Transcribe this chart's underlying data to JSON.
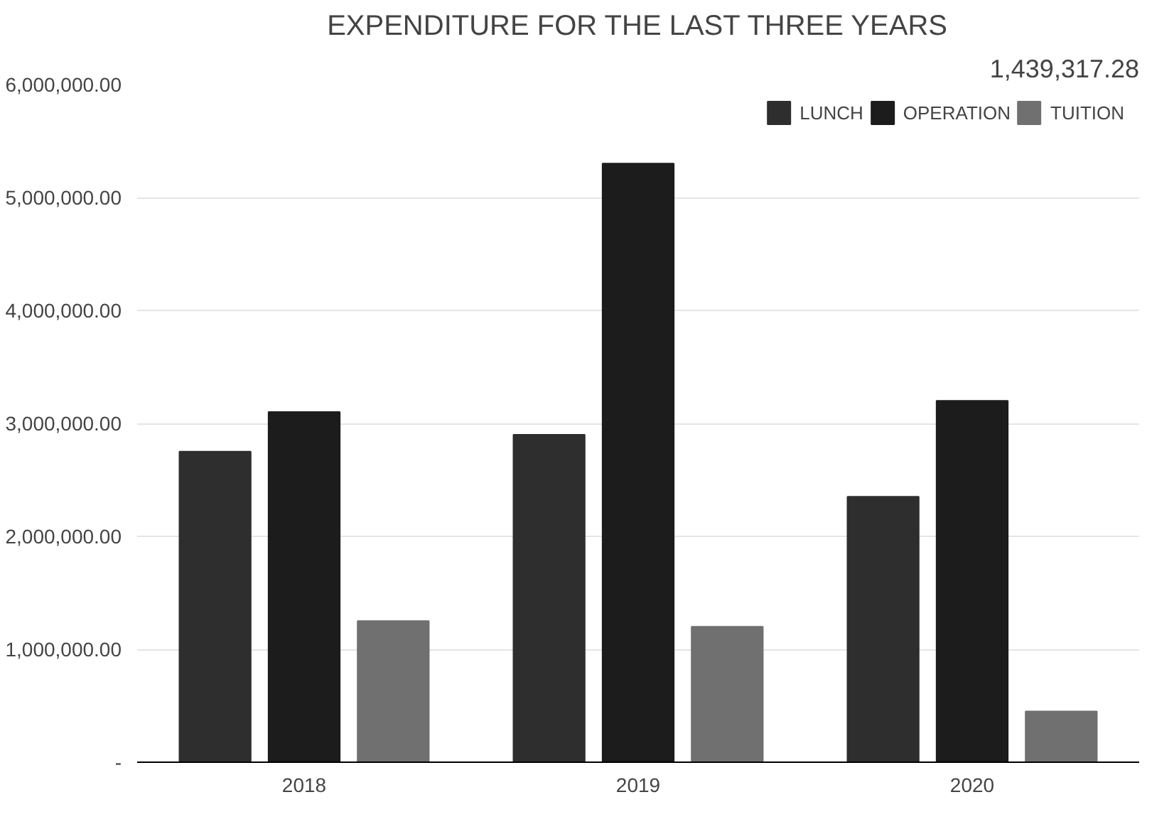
{
  "chart_data": {
    "type": "bar",
    "title": "EXPENDITURE FOR THE LAST THREE YEARS",
    "categories": [
      "2018",
      "2019",
      "2020"
    ],
    "series": [
      {
        "name": "LUNCH",
        "color": "#2e2e2e",
        "values": [
          2750000,
          2900000,
          2350000
        ]
      },
      {
        "name": "OPERATION",
        "color": "#1c1c1c",
        "values": [
          3100000,
          5300000,
          3200000
        ]
      },
      {
        "name": "TUITION",
        "color": "#707070",
        "values": [
          1250000,
          1200000,
          450000
        ]
      }
    ],
    "ylim": [
      0,
      6000000
    ],
    "yticks": [
      {
        "value": 0,
        "label": "-"
      },
      {
        "value": 1000000,
        "label": "1,000,000.00"
      },
      {
        "value": 2000000,
        "label": "2,000,000.00"
      },
      {
        "value": 3000000,
        "label": "3,000,000.00"
      },
      {
        "value": 4000000,
        "label": "4,000,000.00"
      },
      {
        "value": 5000000,
        "label": "5,000,000.00"
      },
      {
        "value": 6000000,
        "label": "6,000,000.00"
      }
    ],
    "grid": "y",
    "legend": "top right",
    "annotations": [
      "1,439,317.28"
    ]
  }
}
